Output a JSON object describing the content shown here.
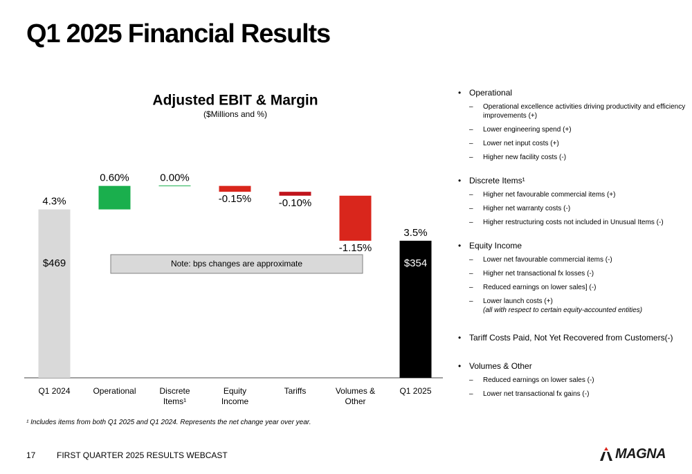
{
  "slide_title": "Q1 2025 Financial Results",
  "chart_data": {
    "type": "waterfall",
    "title": "Adjusted EBIT & Margin",
    "subtitle": "($Millions and %)",
    "categories": [
      "Q1 2024",
      "Operational",
      "Discrete Items¹",
      "Equity Income",
      "Tariffs",
      "Volumes & Other",
      "Q1 2025"
    ],
    "measure": [
      "total",
      "relative",
      "relative",
      "relative",
      "relative",
      "relative",
      "total"
    ],
    "values": [
      4.3,
      0.6,
      0.0,
      -0.15,
      -0.1,
      -1.15,
      3.5
    ],
    "value_labels": [
      "4.3%",
      "0.60%",
      "0.00%",
      "-0.15%",
      "-0.10%",
      "-1.15%",
      "3.5%"
    ],
    "colors": [
      "#d9d9d9",
      "#1aaf4d",
      "#1aaf4d",
      "#d9261c",
      "#c0141c",
      "#d9261c",
      "#000000"
    ],
    "amounts": [
      469,
      null,
      null,
      null,
      null,
      null,
      354
    ],
    "amount_labels": [
      "$469",
      null,
      null,
      null,
      null,
      null,
      "$354"
    ],
    "annotation": "Note:  bps changes are approximate",
    "ylim": [
      0,
      5
    ]
  },
  "footnote": "¹ Includes items from both Q1 2025 and Q1 2024. Represents the net change year over year.",
  "sections": [
    {
      "heading": "Operational",
      "items": [
        {
          "text": "Operational excellence activities driving productivity and efficiency improvements (+)"
        },
        {
          "text": "Lower engineering spend (+)"
        },
        {
          "text": "Lower net input costs (+)"
        },
        {
          "text": "Higher new facility costs (-)"
        }
      ]
    },
    {
      "heading": "Discrete Items¹",
      "items": [
        {
          "text": "Higher net favourable commercial items (+)"
        },
        {
          "text": "Higher net warranty costs (-)"
        },
        {
          "text": "Higher restructuring costs not included in Unusual Items (-)"
        }
      ]
    },
    {
      "heading": "Equity Income",
      "items": [
        {
          "text": "Lower net favourable commercial items (-)"
        },
        {
          "text": "Higher net transactional fx losses (-)"
        },
        {
          "text": "Reduced earnings on lower sales] (-)"
        },
        {
          "text": "Lower launch costs (+)",
          "note": "(all with respect to certain equity-accounted entities)"
        }
      ]
    },
    {
      "heading": "Tariff Costs Paid, Not Yet Recovered from Customers(-)",
      "items": []
    },
    {
      "heading": "Volumes & Other",
      "items": [
        {
          "text": "Reduced earnings on lower sales (-)"
        },
        {
          "text": "Lower net transactional fx gains (-)"
        }
      ]
    }
  ],
  "footer": {
    "page": "17",
    "text": "FIRST QUARTER 2025 RESULTS WEBCAST",
    "logo": "MAGNA"
  }
}
